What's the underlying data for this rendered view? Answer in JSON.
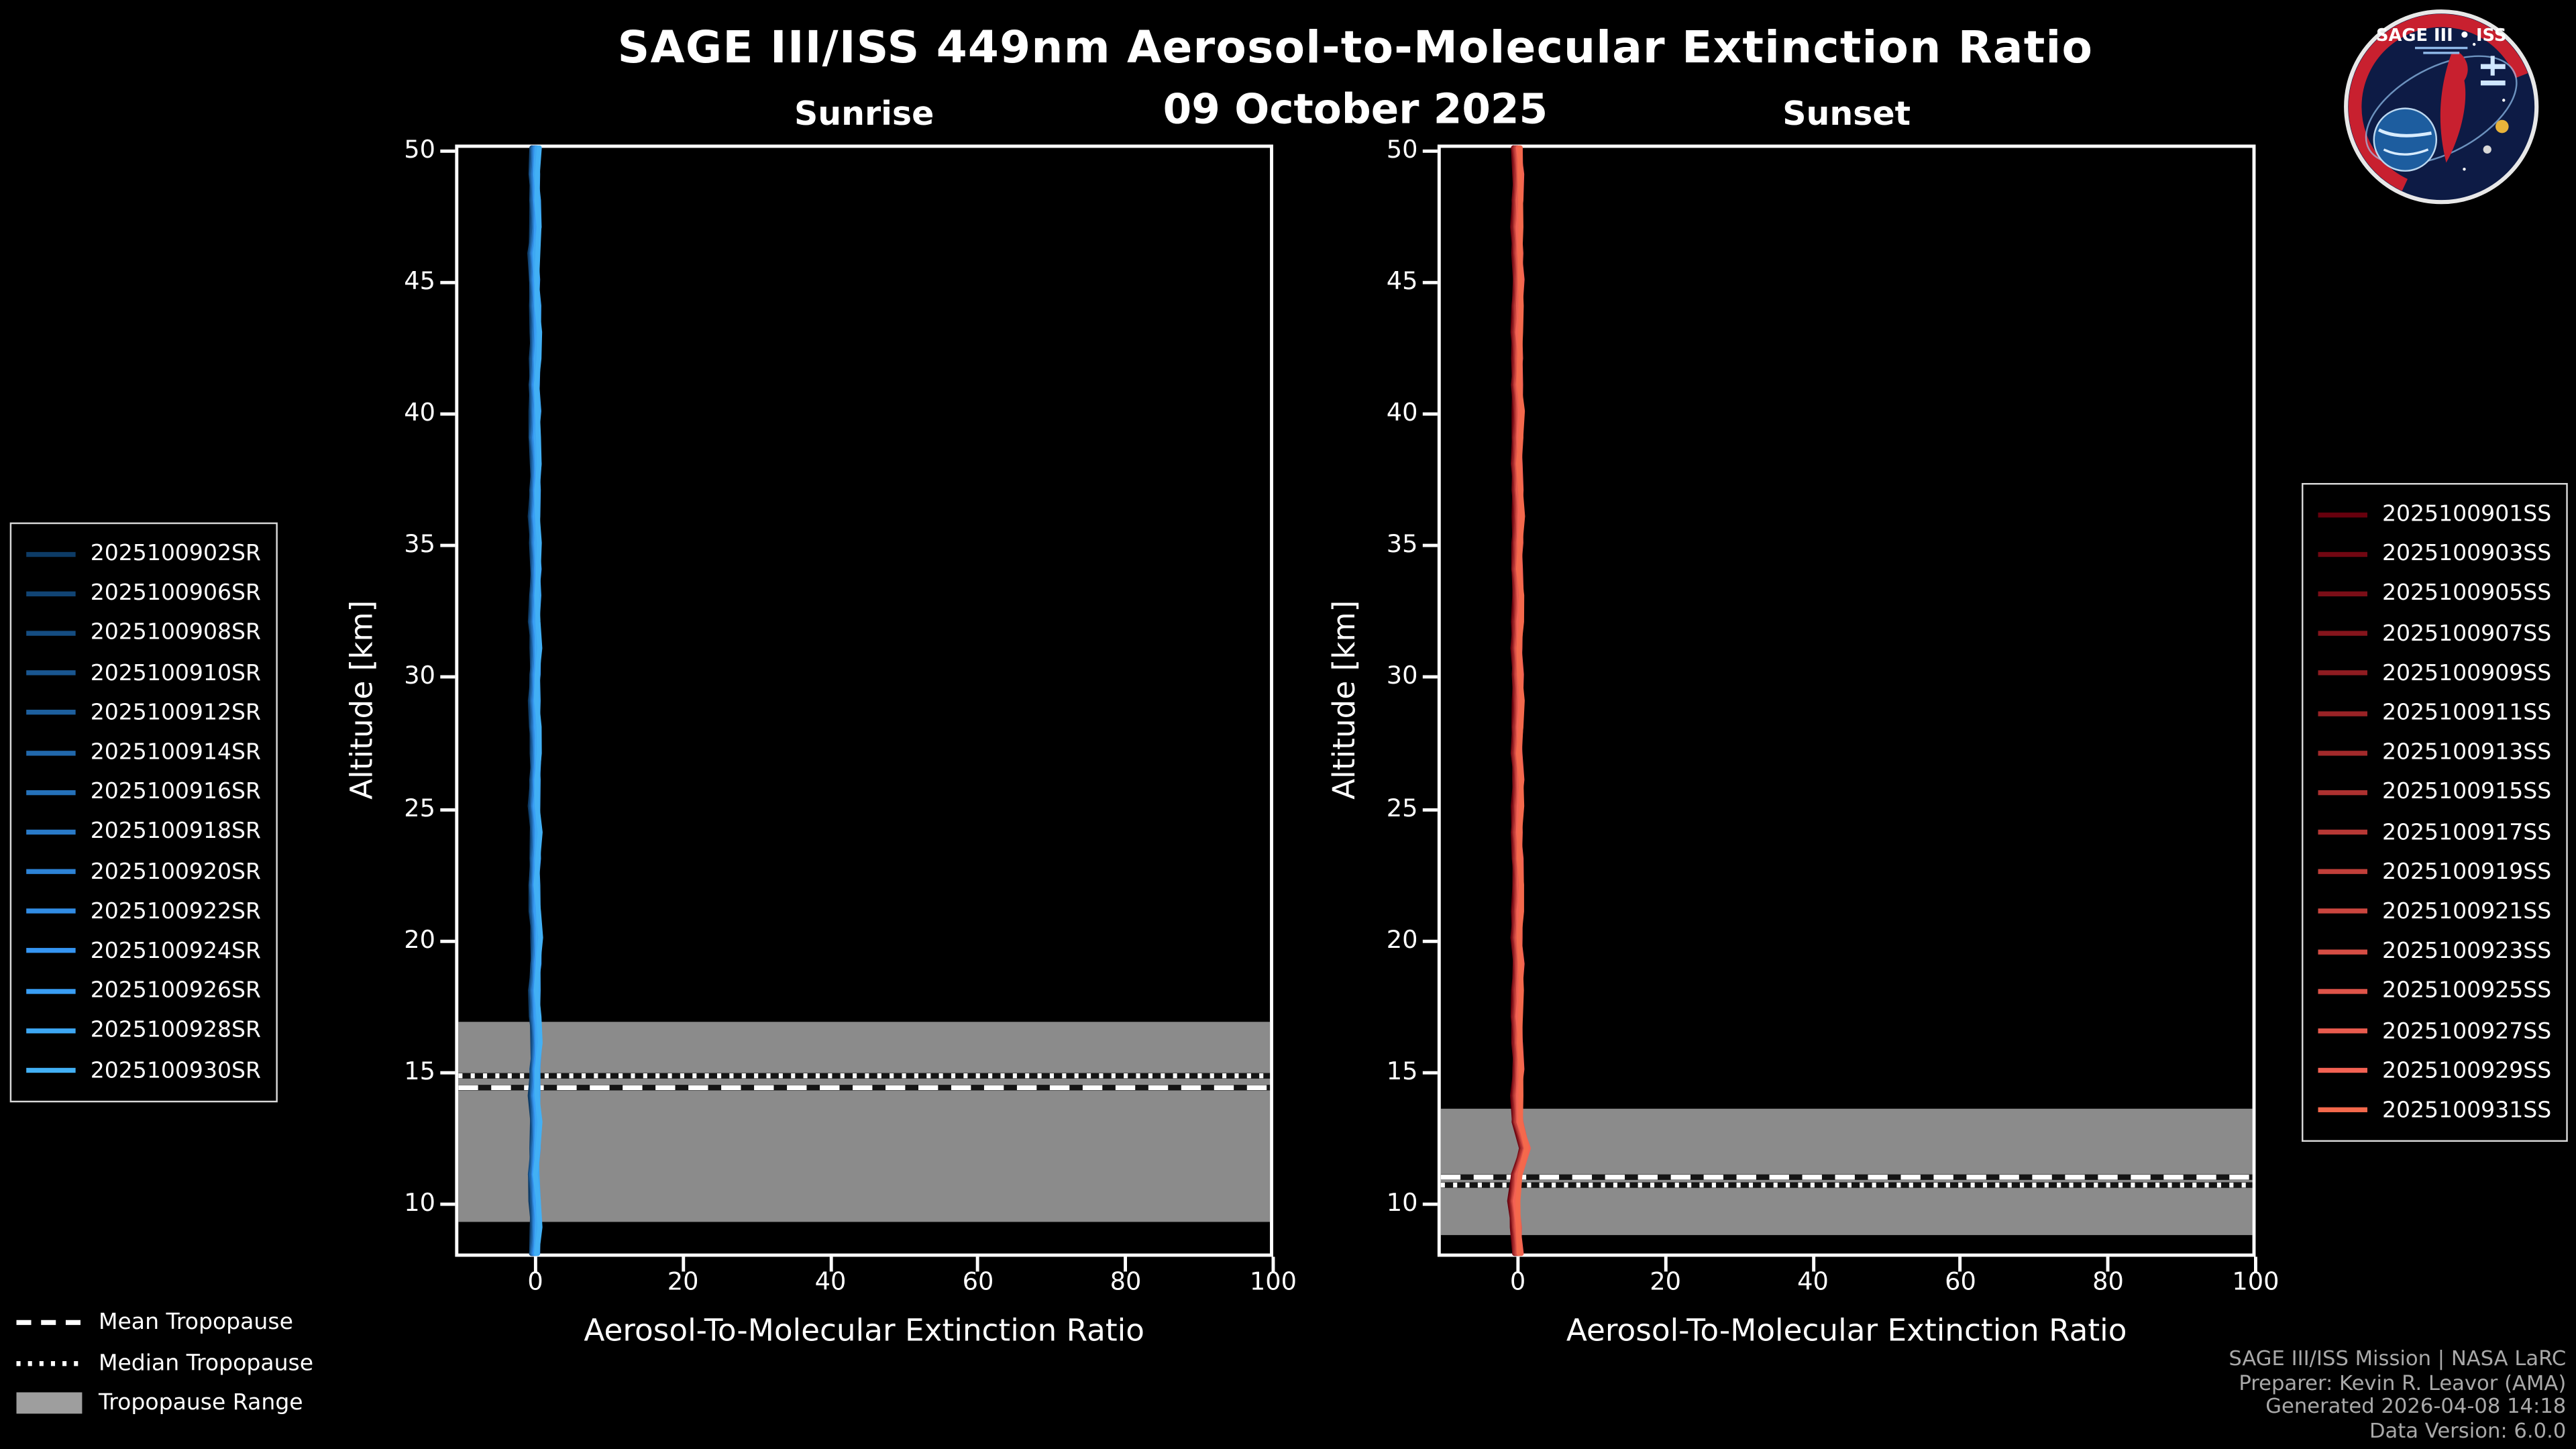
{
  "header": {
    "title": "SAGE III/ISS 449nm Aerosol-to-Molecular Extinction Ratio",
    "date": "09 October 2025"
  },
  "logo": {
    "title": "SAGE III • ISS"
  },
  "colors": {
    "background": "#000000",
    "foreground": "#ffffff",
    "tropopause_band": "#9e9e9e",
    "sunrise_line": "#42b0f5",
    "sunset_line": "#f4694c",
    "credits_text": "#a9a9a9"
  },
  "tropopause_legend": {
    "mean_label": "Mean Tropopause",
    "median_label": "Median Tropopause",
    "range_label": "Tropopause Range"
  },
  "credits": {
    "line1": "SAGE III/ISS Mission | NASA LaRC",
    "line2": "Preparer: Kevin R. Leavor (AMA)",
    "line3": "Generated 2026-04-08 14:18",
    "line4": "Data Version: 6.0.0"
  },
  "chart_data": [
    {
      "id": "sunrise",
      "type": "line",
      "title": "Sunrise",
      "xlabel": "Aerosol-To-Molecular Extinction Ratio",
      "ylabel": "Altitude [km]",
      "xlim": [
        -10,
        100
      ],
      "ylim": [
        8,
        50
      ],
      "xticks": [
        0,
        20,
        40,
        60,
        80,
        100
      ],
      "yticks": [
        10,
        15,
        20,
        25,
        30,
        35,
        40,
        45,
        50
      ],
      "grid": false,
      "legend_position": "outside-left",
      "altitudes": [
        8,
        9,
        10,
        11,
        12,
        13,
        14,
        15,
        16,
        17,
        18,
        19,
        20,
        21,
        22,
        23,
        24,
        25,
        26,
        27,
        28,
        29,
        30,
        31,
        32,
        33,
        34,
        35,
        36,
        37,
        38,
        39,
        40,
        41,
        42,
        43,
        44,
        45,
        46,
        47,
        48,
        49,
        50
      ],
      "profile_ratios": [
        0.3,
        0.5,
        0.4,
        0.2,
        0.4,
        0.5,
        0.3,
        0.4,
        0.6,
        0.4,
        0.3,
        0.5,
        0.6,
        0.4,
        0.3,
        0.4,
        0.5,
        0.3,
        0.4,
        0.5,
        0.4,
        0.3,
        0.4,
        0.5,
        0.3,
        0.4,
        0.5,
        0.4,
        0.3,
        0.4,
        0.5,
        0.3,
        0.4,
        0.3,
        0.4,
        0.5,
        0.4,
        0.3,
        0.2,
        0.5,
        0.4,
        0.3,
        0.4
      ],
      "tropopause": {
        "mean_km": 14.3,
        "median_km": 14.75,
        "range_km": [
          9.2,
          16.8
        ]
      },
      "series": [
        {
          "name": "2025100902SR",
          "color": "#0d3b66"
        },
        {
          "name": "2025100906SR",
          "color": "#114474"
        },
        {
          "name": "2025100908SR",
          "color": "#154d82"
        },
        {
          "name": "2025100910SR",
          "color": "#195690"
        },
        {
          "name": "2025100912SR",
          "color": "#1d5f9e"
        },
        {
          "name": "2025100914SR",
          "color": "#2168ac"
        },
        {
          "name": "2025100916SR",
          "color": "#2571ba"
        },
        {
          "name": "2025100918SR",
          "color": "#297ac8"
        },
        {
          "name": "2025100920SR",
          "color": "#2d83d6"
        },
        {
          "name": "2025100922SR",
          "color": "#318ce4"
        },
        {
          "name": "2025100924SR",
          "color": "#3595f2"
        },
        {
          "name": "2025100926SR",
          "color": "#399ef5"
        },
        {
          "name": "2025100928SR",
          "color": "#3da7f3"
        },
        {
          "name": "2025100930SR",
          "color": "#42b0f5"
        }
      ]
    },
    {
      "id": "sunset",
      "type": "line",
      "title": "Sunset",
      "xlabel": "Aerosol-To-Molecular Extinction Ratio",
      "ylabel": "Altitude [km]",
      "xlim": [
        -10,
        100
      ],
      "ylim": [
        8,
        50
      ],
      "xticks": [
        0,
        20,
        40,
        60,
        80,
        100
      ],
      "yticks": [
        10,
        15,
        20,
        25,
        30,
        35,
        40,
        45,
        50
      ],
      "grid": false,
      "legend_position": "outside-right",
      "altitudes": [
        8,
        9,
        10,
        11,
        12,
        13,
        14,
        15,
        16,
        17,
        18,
        19,
        20,
        21,
        22,
        23,
        24,
        25,
        26,
        27,
        28,
        29,
        30,
        31,
        32,
        33,
        34,
        35,
        36,
        37,
        38,
        39,
        40,
        41,
        42,
        43,
        44,
        45,
        46,
        47,
        48,
        49,
        50
      ],
      "profile_ratios": [
        0.4,
        0.2,
        -0.1,
        0.3,
        1.4,
        0.4,
        0.3,
        0.5,
        0.4,
        0.3,
        0.4,
        0.5,
        0.3,
        0.4,
        0.5,
        0.4,
        0.3,
        0.4,
        0.5,
        0.3,
        0.4,
        0.5,
        0.4,
        0.3,
        0.4,
        0.5,
        0.3,
        0.4,
        0.5,
        0.4,
        0.3,
        0.4,
        0.5,
        0.3,
        0.4,
        0.3,
        0.4,
        0.5,
        0.4,
        0.3,
        0.4,
        0.5,
        0.3
      ],
      "tropopause": {
        "mean_km": 10.9,
        "median_km": 10.6,
        "range_km": [
          8.7,
          13.5
        ]
      },
      "series": [
        {
          "name": "2025100901SS",
          "color": "#67000d"
        },
        {
          "name": "2025100903SS",
          "color": "#710712"
        },
        {
          "name": "2025100905SS",
          "color": "#7b0e17"
        },
        {
          "name": "2025100907SS",
          "color": "#85151c"
        },
        {
          "name": "2025100909SS",
          "color": "#8f1c21"
        },
        {
          "name": "2025100911SS",
          "color": "#992326"
        },
        {
          "name": "2025100913SS",
          "color": "#a32a2b"
        },
        {
          "name": "2025100915SS",
          "color": "#ad3130"
        },
        {
          "name": "2025100917SS",
          "color": "#b73835"
        },
        {
          "name": "2025100919SS",
          "color": "#c13f3a"
        },
        {
          "name": "2025100921SS",
          "color": "#cb463f"
        },
        {
          "name": "2025100923SS",
          "color": "#d54d44"
        },
        {
          "name": "2025100925SS",
          "color": "#df5449"
        },
        {
          "name": "2025100927SS",
          "color": "#e95b4e"
        },
        {
          "name": "2025100929SS",
          "color": "#f36253"
        },
        {
          "name": "2025100931SS",
          "color": "#f4694c"
        }
      ]
    }
  ]
}
